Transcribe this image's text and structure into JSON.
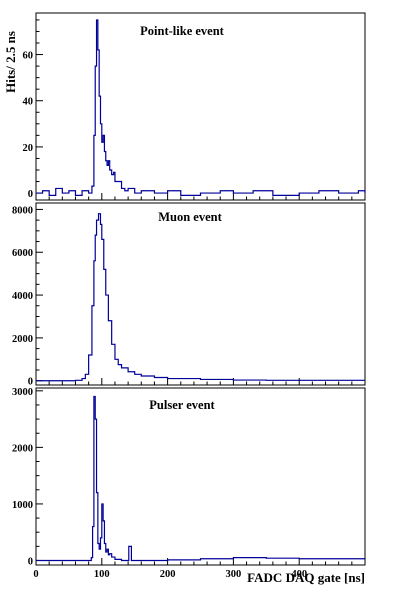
{
  "chart_data": [
    {
      "type": "line",
      "title": "Point-like event",
      "ylabel": "Hits/ 2.5 ns",
      "xlabel": "",
      "xlim": [
        0,
        500
      ],
      "ylim": [
        -3,
        78
      ],
      "x_ticks": [
        0,
        100,
        200,
        300,
        400
      ],
      "y_ticks": [
        0,
        20,
        40,
        60
      ],
      "color": "#000099",
      "series": [
        {
          "x": [
            0,
            10,
            20,
            30,
            40,
            50,
            60,
            70,
            80,
            85,
            88,
            90,
            92,
            94,
            96,
            98,
            100,
            102,
            104,
            106,
            108,
            110,
            112,
            115,
            118,
            120,
            125,
            130,
            135,
            140,
            150,
            160,
            180,
            200,
            220,
            250,
            280,
            300,
            330,
            360,
            400,
            430,
            460,
            490,
            500
          ],
          "values": [
            0,
            1,
            -1,
            2,
            0,
            1,
            -1,
            1,
            0,
            3,
            25,
            55,
            75,
            62,
            42,
            30,
            22,
            25,
            18,
            14,
            12,
            14,
            10,
            8,
            9,
            5,
            5,
            2,
            1,
            2,
            0,
            1,
            0,
            1,
            -1,
            0,
            1,
            0,
            1,
            -1,
            0,
            1,
            0,
            1,
            0
          ]
        }
      ]
    },
    {
      "type": "line",
      "title": "Muon event",
      "ylabel": "",
      "xlabel": "",
      "xlim": [
        0,
        500
      ],
      "ylim": [
        -200,
        8300
      ],
      "x_ticks": [
        0,
        100,
        200,
        300,
        400
      ],
      "y_ticks": [
        0,
        2000,
        4000,
        6000,
        8000
      ],
      "color": "#000099",
      "series": [
        {
          "x": [
            0,
            20,
            40,
            60,
            70,
            75,
            80,
            85,
            88,
            90,
            92,
            95,
            98,
            100,
            103,
            106,
            110,
            115,
            120,
            125,
            130,
            140,
            150,
            160,
            180,
            200,
            250,
            300,
            350,
            400,
            450,
            500
          ],
          "values": [
            0,
            0,
            0,
            20,
            100,
            300,
            1200,
            3500,
            5600,
            6800,
            7500,
            7800,
            7300,
            6600,
            5200,
            4000,
            2800,
            1700,
            1000,
            750,
            600,
            420,
            300,
            220,
            150,
            100,
            60,
            30,
            20,
            20,
            20,
            20
          ]
        }
      ]
    },
    {
      "type": "line",
      "title": "Pulser event",
      "ylabel": "",
      "xlabel": "FADC DAQ gate [ns]",
      "xlim": [
        0,
        500
      ],
      "ylim": [
        -80,
        3050
      ],
      "x_ticks": [
        0,
        100,
        200,
        300,
        400
      ],
      "y_ticks": [
        0,
        1000,
        2000,
        3000
      ],
      "color": "#000099",
      "series": [
        {
          "x": [
            0,
            40,
            80,
            84,
            86,
            88,
            90,
            92,
            94,
            96,
            98,
            100,
            102,
            104,
            106,
            108,
            110,
            112,
            115,
            120,
            130,
            140,
            141,
            145,
            160,
            200,
            250,
            300,
            350,
            400,
            450,
            500
          ],
          "values": [
            0,
            0,
            0,
            50,
            600,
            2900,
            2500,
            1200,
            300,
            200,
            400,
            1000,
            700,
            300,
            150,
            200,
            100,
            120,
            60,
            20,
            0,
            0,
            250,
            0,
            0,
            10,
            30,
            50,
            40,
            30,
            30,
            20
          ]
        }
      ]
    }
  ]
}
